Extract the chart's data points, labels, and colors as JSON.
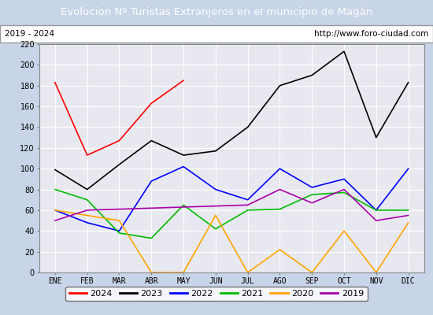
{
  "title": "Evolucion Nº Turistas Extranjeros en el municipio de Magán",
  "subtitle_left": "2019 - 2024",
  "subtitle_right": "http://www.foro-ciudad.com",
  "x_labels": [
    "ENE",
    "FEB",
    "MAR",
    "ABR",
    "MAY",
    "JUN",
    "JUL",
    "AGO",
    "SEP",
    "OCT",
    "NOV",
    "DIC"
  ],
  "ylim": [
    0,
    220
  ],
  "yticks": [
    0,
    20,
    40,
    60,
    80,
    100,
    120,
    140,
    160,
    180,
    200,
    220
  ],
  "series": {
    "2024": {
      "color": "#ff0000",
      "data": [
        183,
        113,
        127,
        163,
        185,
        null,
        null,
        null,
        null,
        null,
        null,
        null
      ]
    },
    "2023": {
      "color": "#000000",
      "data": [
        99,
        80,
        104,
        127,
        113,
        117,
        140,
        180,
        190,
        213,
        130,
        183
      ]
    },
    "2022": {
      "color": "#0000ff",
      "data": [
        60,
        48,
        40,
        88,
        102,
        80,
        70,
        100,
        82,
        90,
        60,
        100
      ]
    },
    "2021": {
      "color": "#00bb00",
      "data": [
        80,
        70,
        38,
        33,
        65,
        42,
        60,
        61,
        75,
        77,
        60,
        60
      ]
    },
    "2020": {
      "color": "#ffa500",
      "data": [
        60,
        55,
        50,
        0,
        0,
        55,
        0,
        22,
        0,
        40,
        0,
        48
      ]
    },
    "2019": {
      "color": "#aa00aa",
      "data": [
        50,
        60,
        null,
        null,
        null,
        null,
        65,
        80,
        67,
        80,
        50,
        55
      ]
    }
  },
  "title_bg_color": "#4472c4",
  "title_font_color": "#ffffff",
  "plot_bg_color": "#e8e8f0",
  "outer_bg_color": "#c8d4e8",
  "grid_color": "#ffffff",
  "legend_order": [
    "2024",
    "2023",
    "2022",
    "2021",
    "2020",
    "2019"
  ]
}
